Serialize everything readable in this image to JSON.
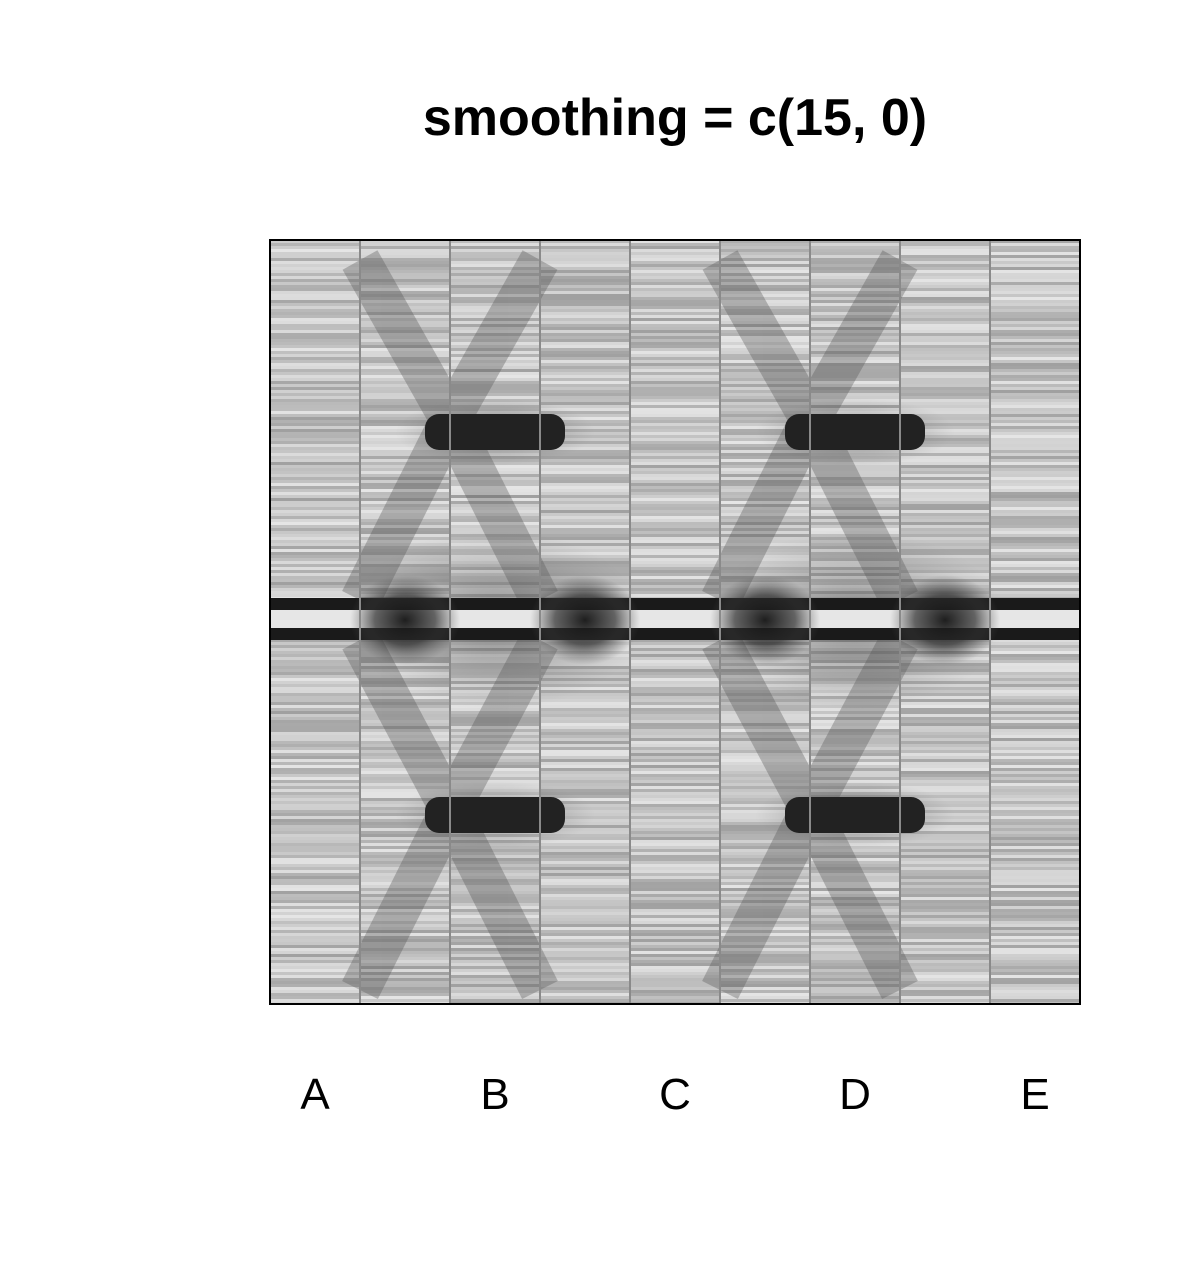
{
  "chart_data": {
    "type": "heatmap",
    "title": "smoothing = c(15, 0)",
    "xlabel": "",
    "ylabel": "",
    "colormap": "grayscale",
    "x_tick_labels": [
      "A",
      "B",
      "C",
      "D",
      "E"
    ],
    "columns_per_label": 2,
    "column_count": 9,
    "grid": "vertical separators between columns",
    "features": [
      {
        "kind": "dark horizontal band",
        "location": "upper third",
        "columns": [
          "B",
          "D"
        ]
      },
      {
        "kind": "dark horizontal band",
        "location": "lower third",
        "columns": [
          "B",
          "D"
        ]
      },
      {
        "kind": "dark double line with light center",
        "location": "middle",
        "columns": [
          "A",
          "B",
          "C",
          "D",
          "E"
        ]
      },
      {
        "kind": "diagonal shading connecting bands",
        "location": "between bands",
        "columns": [
          "A",
          "B",
          "C",
          "D",
          "E"
        ]
      }
    ]
  }
}
